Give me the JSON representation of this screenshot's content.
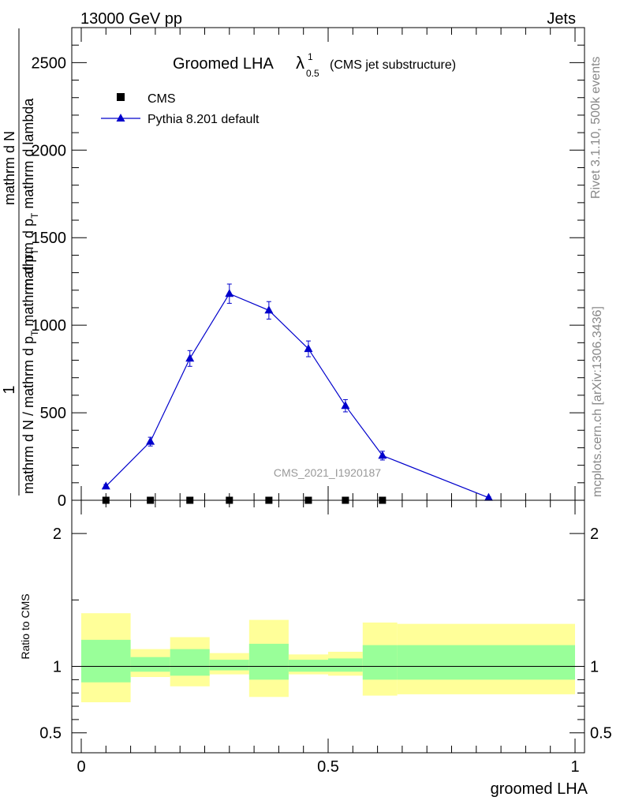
{
  "header": {
    "left": "13000 GeV pp",
    "right": "Jets"
  },
  "title": {
    "main": "Groomed LHA",
    "lambda": "λ",
    "sup": "1",
    "sub": "0.5",
    "note": "(CMS jet substructure)"
  },
  "side_labels": {
    "rivet": "Rivet 3.1.10,  500k events",
    "mcplots": "mcplots.cern.ch [arXiv:1306.3436]"
  },
  "watermark": "CMS_2021_I1920187",
  "legend": {
    "data_label": "CMS",
    "mc_label": "Pythia 8.201 default"
  },
  "ylabel": {
    "one": "1",
    "inner_num": "mathrm d",
    "inner_num_n": "N",
    "inner_den": "mathrm d p",
    "inner_den_sub": "T",
    "inner_den_tail": " mathrm d lambda",
    "outer_num": "mathrm d",
    "outer_num_n": "N",
    "outer_den": "mathrm d N / mathrm d p",
    "outer_den_sub": "T",
    "outer_den_tail": " mathrm d p",
    "outer_den_sub2": "T"
  },
  "colors": {
    "mc": "#0000cc",
    "data": "#000000",
    "band_outer": "#ffff99",
    "band_inner": "#99ff99"
  },
  "chart_data": [
    {
      "type": "line",
      "panel": "main",
      "xlim": [
        0,
        1
      ],
      "ylim": [
        0,
        2700
      ],
      "xticks": [
        "0",
        "0.5",
        "1"
      ],
      "yticks": [
        "0",
        "500",
        "1000",
        "1500",
        "2000",
        "2500"
      ],
      "series": [
        {
          "name": "CMS",
          "x": [
            0.05,
            0.14,
            0.22,
            0.3,
            0.38,
            0.46,
            0.535,
            0.61
          ],
          "y": [
            0,
            0,
            0,
            0,
            0,
            0,
            0,
            0
          ]
        },
        {
          "name": "Pythia 8.201 default",
          "x": [
            0.05,
            0.14,
            0.22,
            0.3,
            0.38,
            0.46,
            0.535,
            0.61,
            0.825
          ],
          "y": [
            80,
            335,
            810,
            1180,
            1085,
            865,
            540,
            255,
            15
          ],
          "yerr": [
            10,
            25,
            45,
            55,
            50,
            45,
            35,
            25,
            5
          ]
        }
      ]
    },
    {
      "type": "area",
      "panel": "ratio",
      "ylabel": "Ratio to CMS",
      "xlabel": "groomed LHA",
      "xlim": [
        0,
        1
      ],
      "ylim": [
        0.35,
        2.25
      ],
      "yticks": [
        "0.5",
        "1",
        "2"
      ],
      "bins": [
        {
          "lo": 0.0,
          "hi": 0.1,
          "outer": [
            0.73,
            1.4
          ],
          "inner": [
            0.88,
            1.2
          ]
        },
        {
          "lo": 0.1,
          "hi": 0.18,
          "outer": [
            0.92,
            1.13
          ],
          "inner": [
            0.96,
            1.07
          ]
        },
        {
          "lo": 0.18,
          "hi": 0.26,
          "outer": [
            0.85,
            1.22
          ],
          "inner": [
            0.93,
            1.13
          ]
        },
        {
          "lo": 0.26,
          "hi": 0.34,
          "outer": [
            0.94,
            1.1
          ],
          "inner": [
            0.97,
            1.05
          ]
        },
        {
          "lo": 0.34,
          "hi": 0.42,
          "outer": [
            0.77,
            1.35
          ],
          "inner": [
            0.9,
            1.17
          ]
        },
        {
          "lo": 0.42,
          "hi": 0.5,
          "outer": [
            0.94,
            1.09
          ],
          "inner": [
            0.96,
            1.05
          ]
        },
        {
          "lo": 0.5,
          "hi": 0.57,
          "outer": [
            0.93,
            1.11
          ],
          "inner": [
            0.96,
            1.06
          ]
        },
        {
          "lo": 0.57,
          "hi": 0.64,
          "outer": [
            0.78,
            1.33
          ],
          "inner": [
            0.9,
            1.16
          ]
        },
        {
          "lo": 0.64,
          "hi": 1.0,
          "outer": [
            0.79,
            1.32
          ],
          "inner": [
            0.9,
            1.16
          ]
        }
      ],
      "ratio_line": 1
    }
  ]
}
